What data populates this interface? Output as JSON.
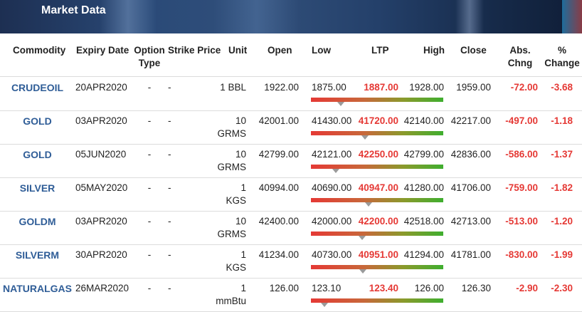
{
  "banner": {
    "title": "Market Data"
  },
  "headers": {
    "commodity": "Commodity",
    "expiry": "Expiry Date",
    "option_type_1": "Option",
    "option_type_2": "Type",
    "strike": "Strike Price",
    "unit": "Unit",
    "open": "Open",
    "low": "Low",
    "ltp": "LTP",
    "high": "High",
    "close": "Close",
    "abs_1": "Abs.",
    "abs_2": "Chng",
    "pct_1": "%",
    "pct_2": "Change"
  },
  "rows": [
    {
      "symbol": "CRUDEOIL",
      "expiry": "20APR2020",
      "option": "-",
      "strike": "-",
      "unit1": "1 BBL",
      "unit2": "",
      "open": "1922.00",
      "low": "1875.00",
      "ltp": "1887.00",
      "high": "1928.00",
      "close": "1959.00",
      "abs": "-72.00",
      "pct": "-3.68"
    },
    {
      "symbol": "GOLD",
      "expiry": "03APR2020",
      "option": "-",
      "strike": "-",
      "unit1": "10",
      "unit2": "GRMS",
      "open": "42001.00",
      "low": "41430.00",
      "ltp": "41720.00",
      "high": "42140.00",
      "close": "42217.00",
      "abs": "-497.00",
      "pct": "-1.18"
    },
    {
      "symbol": "GOLD",
      "expiry": "05JUN2020",
      "option": "-",
      "strike": "-",
      "unit1": "10",
      "unit2": "GRMS",
      "open": "42799.00",
      "low": "42121.00",
      "ltp": "42250.00",
      "high": "42799.00",
      "close": "42836.00",
      "abs": "-586.00",
      "pct": "-1.37"
    },
    {
      "symbol": "SILVER",
      "expiry": "05MAY2020",
      "option": "-",
      "strike": "-",
      "unit1": "1",
      "unit2": "KGS",
      "open": "40994.00",
      "low": "40690.00",
      "ltp": "40947.00",
      "high": "41280.00",
      "close": "41706.00",
      "abs": "-759.00",
      "pct": "-1.82"
    },
    {
      "symbol": "GOLDM",
      "expiry": "03APR2020",
      "option": "-",
      "strike": "-",
      "unit1": "10",
      "unit2": "GRMS",
      "open": "42400.00",
      "low": "42000.00",
      "ltp": "42200.00",
      "high": "42518.00",
      "close": "42713.00",
      "abs": "-513.00",
      "pct": "-1.20"
    },
    {
      "symbol": "SILVERM",
      "expiry": "30APR2020",
      "option": "-",
      "strike": "-",
      "unit1": "1",
      "unit2": "KGS",
      "open": "41234.00",
      "low": "40730.00",
      "ltp": "40951.00",
      "high": "41294.00",
      "close": "41781.00",
      "abs": "-830.00",
      "pct": "-1.99"
    },
    {
      "symbol": "NATURALGAS",
      "expiry": "26MAR2020",
      "option": "-",
      "strike": "-",
      "unit1": "1",
      "unit2": "mmBtu",
      "open": "126.00",
      "low": "123.10",
      "ltp": "123.40",
      "high": "126.00",
      "close": "126.30",
      "abs": "-2.90",
      "pct": "-2.30"
    }
  ]
}
